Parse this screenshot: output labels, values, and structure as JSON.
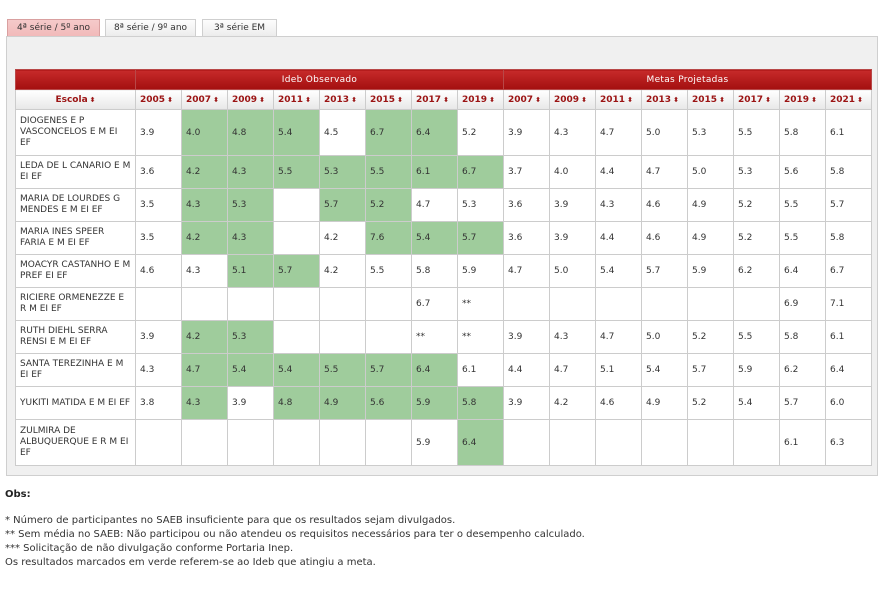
{
  "tabs": [
    {
      "label": "4ª série / 5º ano",
      "active": true
    },
    {
      "label": "8ª série / 9º ano",
      "active": false
    },
    {
      "label": "3ª série EM",
      "active": false
    }
  ],
  "table": {
    "group_observed": "Ideb Observado",
    "group_projected": "Metas Projetadas",
    "col_school": "Escola",
    "observed_years": [
      "2005",
      "2007",
      "2009",
      "2011",
      "2013",
      "2015",
      "2017",
      "2019"
    ],
    "projected_years": [
      "2007",
      "2009",
      "2011",
      "2013",
      "2015",
      "2017",
      "2019",
      "2021"
    ],
    "rows": [
      {
        "name": "DIOGENES E P VASCONCELOS E M EI EF",
        "obs": [
          "3.9",
          "4.0",
          "4.8",
          "5.4",
          "4.5",
          "6.7",
          "6.4",
          "5.2"
        ],
        "green": [
          false,
          true,
          true,
          true,
          false,
          true,
          true,
          false
        ],
        "proj": [
          "3.9",
          "4.3",
          "4.7",
          "5.0",
          "5.3",
          "5.5",
          "5.8",
          "6.1"
        ]
      },
      {
        "name": "LEDA DE L CANARIO E M EI EF",
        "obs": [
          "3.6",
          "4.2",
          "4.3",
          "5.5",
          "5.3",
          "5.5",
          "6.1",
          "6.7"
        ],
        "green": [
          false,
          true,
          true,
          true,
          true,
          true,
          true,
          true
        ],
        "proj": [
          "3.7",
          "4.0",
          "4.4",
          "4.7",
          "5.0",
          "5.3",
          "5.6",
          "5.8"
        ]
      },
      {
        "name": "MARIA DE LOURDES G MENDES E M EI EF",
        "obs": [
          "3.5",
          "4.3",
          "5.3",
          "",
          "5.7",
          "5.2",
          "4.7",
          "5.3"
        ],
        "green": [
          false,
          true,
          true,
          false,
          true,
          true,
          false,
          false
        ],
        "proj": [
          "3.6",
          "3.9",
          "4.3",
          "4.6",
          "4.9",
          "5.2",
          "5.5",
          "5.7"
        ]
      },
      {
        "name": "MARIA INES SPEER FARIA E M EI EF",
        "obs": [
          "3.5",
          "4.2",
          "4.3",
          "",
          "4.2",
          "7.6",
          "5.4",
          "5.7"
        ],
        "green": [
          false,
          true,
          true,
          false,
          false,
          true,
          true,
          true
        ],
        "proj": [
          "3.6",
          "3.9",
          "4.4",
          "4.6",
          "4.9",
          "5.2",
          "5.5",
          "5.8"
        ]
      },
      {
        "name": "MOACYR CASTANHO E M PREF EI EF",
        "obs": [
          "4.6",
          "4.3",
          "5.1",
          "5.7",
          "4.2",
          "5.5",
          "5.8",
          "5.9"
        ],
        "green": [
          false,
          false,
          true,
          true,
          false,
          false,
          false,
          false
        ],
        "proj": [
          "4.7",
          "5.0",
          "5.4",
          "5.7",
          "5.9",
          "6.2",
          "6.4",
          "6.7"
        ]
      },
      {
        "name": "RICIERE ORMENEZZE E R M EI EF",
        "obs": [
          "",
          "",
          "",
          "",
          "",
          "",
          "6.7",
          "**"
        ],
        "green": [
          false,
          false,
          false,
          false,
          false,
          false,
          false,
          false
        ],
        "proj": [
          "",
          "",
          "",
          "",
          "",
          "",
          "6.9",
          "7.1"
        ]
      },
      {
        "name": "RUTH DIEHL SERRA RENSI E M EI EF",
        "obs": [
          "3.9",
          "4.2",
          "5.3",
          "",
          "",
          "",
          "**",
          "**"
        ],
        "green": [
          false,
          true,
          true,
          false,
          false,
          false,
          false,
          false
        ],
        "proj": [
          "3.9",
          "4.3",
          "4.7",
          "5.0",
          "5.2",
          "5.5",
          "5.8",
          "6.1"
        ]
      },
      {
        "name": "SANTA TEREZINHA E M EI EF",
        "obs": [
          "4.3",
          "4.7",
          "5.4",
          "5.4",
          "5.5",
          "5.7",
          "6.4",
          "6.1"
        ],
        "green": [
          false,
          true,
          true,
          true,
          true,
          true,
          true,
          false
        ],
        "proj": [
          "4.4",
          "4.7",
          "5.1",
          "5.4",
          "5.7",
          "5.9",
          "6.2",
          "6.4"
        ]
      },
      {
        "name": "YUKITI MATIDA E M EI EF",
        "obs": [
          "3.8",
          "4.3",
          "3.9",
          "4.8",
          "4.9",
          "5.6",
          "5.9",
          "5.8"
        ],
        "green": [
          false,
          true,
          false,
          true,
          true,
          true,
          true,
          true
        ],
        "proj": [
          "3.9",
          "4.2",
          "4.6",
          "4.9",
          "5.2",
          "5.4",
          "5.7",
          "6.0"
        ]
      },
      {
        "name": "ZULMIRA DE ALBUQUERQUE E R M EI EF",
        "obs": [
          "",
          "",
          "",
          "",
          "",
          "",
          "5.9",
          "6.4"
        ],
        "green": [
          false,
          false,
          false,
          false,
          false,
          false,
          false,
          true
        ],
        "proj": [
          "",
          "",
          "",
          "",
          "",
          "",
          "6.1",
          "6.3"
        ]
      }
    ]
  },
  "obs_title": "Obs:",
  "notes": [
    "* Número de participantes no SAEB insuficiente para que os resultados sejam divulgados.",
    "** Sem média no SAEB: Não participou ou não atendeu os requisitos necessários para ter o desempenho calculado.",
    "*** Solicitação de não divulgação conforme Portaria Inep.",
    "Os resultados marcados em verde referem-se ao Ideb que atingiu a meta."
  ],
  "colors": {
    "header_red": "#b31a1a",
    "met_green": "#9fcc9c",
    "active_tab": "#f1b9b9"
  },
  "icons": {
    "sort": "sort-arrows-icon"
  }
}
